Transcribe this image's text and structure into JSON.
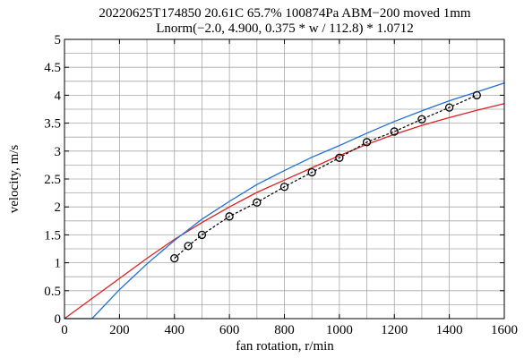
{
  "chart_data": {
    "type": "line",
    "title": "20220625T174850 20.61C 65.7% 100874Pa ABM−200 moved 1mm",
    "subtitle": "Lnorm(−2.0, 4.900, 0.375 * w / 112.8) * 1.0712",
    "xlabel": "fan rotation, r/min",
    "ylabel": "velocity, m/s",
    "xlim": [
      0,
      1600
    ],
    "ylim": [
      0,
      5
    ],
    "x_ticks": [
      0,
      200,
      400,
      600,
      800,
      1000,
      1200,
      1400,
      1600
    ],
    "y_ticks": [
      0,
      0.5,
      1,
      1.5,
      2,
      2.5,
      3,
      3.5,
      4,
      4.5,
      5
    ],
    "x_tick_labels": [
      "0",
      "200",
      "400",
      "600",
      "800",
      "1000",
      "1200",
      "1400",
      "1600"
    ],
    "y_tick_labels": [
      "0",
      "0.5",
      "1",
      "1.5",
      "2",
      "2.5",
      "3",
      "3.5",
      "4",
      "4.5",
      "5"
    ],
    "grid": true,
    "legend": "none",
    "series": [
      {
        "style": "markers-dashed",
        "color": "#000000",
        "x": [
          400,
          450,
          500,
          600,
          700,
          800,
          900,
          1000,
          1100,
          1200,
          1300,
          1400,
          1500
        ],
        "y": [
          1.08,
          1.3,
          1.5,
          1.83,
          2.08,
          2.36,
          2.62,
          2.88,
          3.16,
          3.35,
          3.57,
          3.78,
          4.0
        ]
      },
      {
        "style": "line",
        "color": "#1f6fd6",
        "x": [
          0,
          100,
          200,
          300,
          400,
          500,
          600,
          700,
          800,
          900,
          1000,
          1100,
          1200,
          1300,
          1400,
          1500,
          1600
        ],
        "y": [
          0,
          0,
          0.52,
          0.98,
          1.4,
          1.78,
          2.1,
          2.4,
          2.65,
          2.89,
          3.1,
          3.32,
          3.53,
          3.72,
          3.9,
          4.06,
          4.22
        ]
      },
      {
        "style": "line",
        "color": "#e02020",
        "x": [
          0,
          100,
          200,
          300,
          400,
          500,
          600,
          700,
          800,
          900,
          1000,
          1100,
          1200,
          1300,
          1400,
          1500,
          1600
        ],
        "y": [
          0,
          0.36,
          0.72,
          1.08,
          1.42,
          1.72,
          2.0,
          2.26,
          2.48,
          2.7,
          2.92,
          3.12,
          3.3,
          3.46,
          3.6,
          3.73,
          3.85
        ]
      }
    ]
  }
}
